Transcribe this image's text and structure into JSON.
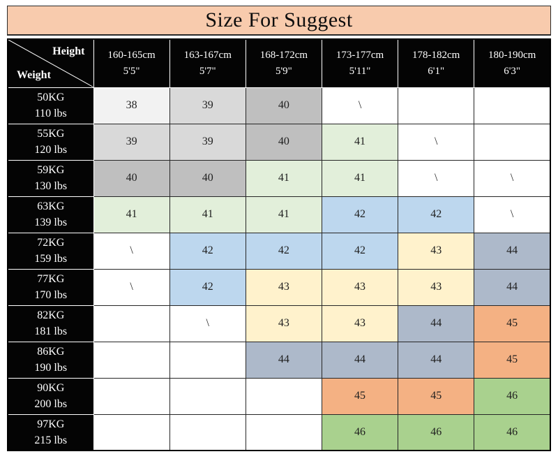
{
  "title": "Size For Suggest",
  "colors": {
    "title_bg": "#F8CBAD",
    "header_bg": "#040404",
    "header_text": "#ffffff",
    "border_dark": "#262626",
    "border_light": "#ffffff"
  },
  "chart_data": {
    "type": "table",
    "title": "Size For Suggest",
    "corner": {
      "top": "Height",
      "bottom": "Weight"
    },
    "palette": {
      "g1": "#F2F2F2",
      "g2": "#D9D9D9",
      "g3": "#BFBFBF",
      "gn": "#E2EFDA",
      "bl": "#BDD7EE",
      "yl": "#FFF2CC",
      "sg": "#ADB9CA",
      "or": "#F4B183",
      "gr": "#A9D18E",
      "wh": "#FFFFFF"
    },
    "columns": [
      {
        "cm": "160-165cm",
        "ft": "5'5\""
      },
      {
        "cm": "163-167cm",
        "ft": "5'7\""
      },
      {
        "cm": "168-172cm",
        "ft": "5'9\""
      },
      {
        "cm": "173-177cm",
        "ft": "5'11\""
      },
      {
        "cm": "178-182cm",
        "ft": "6'1\""
      },
      {
        "cm": "180-190cm",
        "ft": "6'3\""
      }
    ],
    "rows": [
      {
        "kg": "50KG",
        "lbs": "110 lbs",
        "cells": [
          {
            "v": "38",
            "c": "g1"
          },
          {
            "v": "39",
            "c": "g2"
          },
          {
            "v": "40",
            "c": "g3"
          },
          {
            "v": "\\",
            "c": "wh"
          },
          {
            "v": "",
            "c": "wh"
          },
          {
            "v": "",
            "c": "wh"
          }
        ]
      },
      {
        "kg": "55KG",
        "lbs": "120 lbs",
        "cells": [
          {
            "v": "39",
            "c": "g2"
          },
          {
            "v": "39",
            "c": "g2"
          },
          {
            "v": "40",
            "c": "g3"
          },
          {
            "v": "41",
            "c": "gn"
          },
          {
            "v": "\\",
            "c": "wh"
          },
          {
            "v": "",
            "c": "wh"
          }
        ]
      },
      {
        "kg": "59KG",
        "lbs": "130 lbs",
        "cells": [
          {
            "v": "40",
            "c": "g3"
          },
          {
            "v": "40",
            "c": "g3"
          },
          {
            "v": "41",
            "c": "gn"
          },
          {
            "v": "41",
            "c": "gn"
          },
          {
            "v": "\\",
            "c": "wh"
          },
          {
            "v": "\\",
            "c": "wh"
          }
        ]
      },
      {
        "kg": "63KG",
        "lbs": "139 lbs",
        "cells": [
          {
            "v": "41",
            "c": "gn"
          },
          {
            "v": "41",
            "c": "gn"
          },
          {
            "v": "41",
            "c": "gn"
          },
          {
            "v": "42",
            "c": "bl"
          },
          {
            "v": "42",
            "c": "bl"
          },
          {
            "v": "\\",
            "c": "wh"
          }
        ]
      },
      {
        "kg": "72KG",
        "lbs": "159 lbs",
        "cells": [
          {
            "v": "\\",
            "c": "wh"
          },
          {
            "v": "42",
            "c": "bl"
          },
          {
            "v": "42",
            "c": "bl"
          },
          {
            "v": "42",
            "c": "bl"
          },
          {
            "v": "43",
            "c": "yl"
          },
          {
            "v": "44",
            "c": "sg"
          }
        ]
      },
      {
        "kg": "77KG",
        "lbs": "170 lbs",
        "cells": [
          {
            "v": "\\",
            "c": "wh"
          },
          {
            "v": "42",
            "c": "bl"
          },
          {
            "v": "43",
            "c": "yl"
          },
          {
            "v": "43",
            "c": "yl"
          },
          {
            "v": "43",
            "c": "yl"
          },
          {
            "v": "44",
            "c": "sg"
          }
        ]
      },
      {
        "kg": "82KG",
        "lbs": "181 lbs",
        "cells": [
          {
            "v": "",
            "c": "wh"
          },
          {
            "v": "\\",
            "c": "wh"
          },
          {
            "v": "43",
            "c": "yl"
          },
          {
            "v": "43",
            "c": "yl"
          },
          {
            "v": "44",
            "c": "sg"
          },
          {
            "v": "45",
            "c": "or"
          }
        ]
      },
      {
        "kg": "86KG",
        "lbs": "190 lbs",
        "cells": [
          {
            "v": "",
            "c": "wh"
          },
          {
            "v": "",
            "c": "wh"
          },
          {
            "v": "44",
            "c": "sg"
          },
          {
            "v": "44",
            "c": "sg"
          },
          {
            "v": "44",
            "c": "sg"
          },
          {
            "v": "45",
            "c": "or"
          }
        ]
      },
      {
        "kg": "90KG",
        "lbs": "200 lbs",
        "cells": [
          {
            "v": "",
            "c": "wh"
          },
          {
            "v": "",
            "c": "wh"
          },
          {
            "v": "",
            "c": "wh"
          },
          {
            "v": "45",
            "c": "or"
          },
          {
            "v": "45",
            "c": "or"
          },
          {
            "v": "46",
            "c": "gr"
          }
        ]
      },
      {
        "kg": "97KG",
        "lbs": "215 lbs",
        "cells": [
          {
            "v": "",
            "c": "wh"
          },
          {
            "v": "",
            "c": "wh"
          },
          {
            "v": "",
            "c": "wh"
          },
          {
            "v": "46",
            "c": "gr"
          },
          {
            "v": "46",
            "c": "gr"
          },
          {
            "v": "46",
            "c": "gr"
          }
        ]
      }
    ]
  }
}
